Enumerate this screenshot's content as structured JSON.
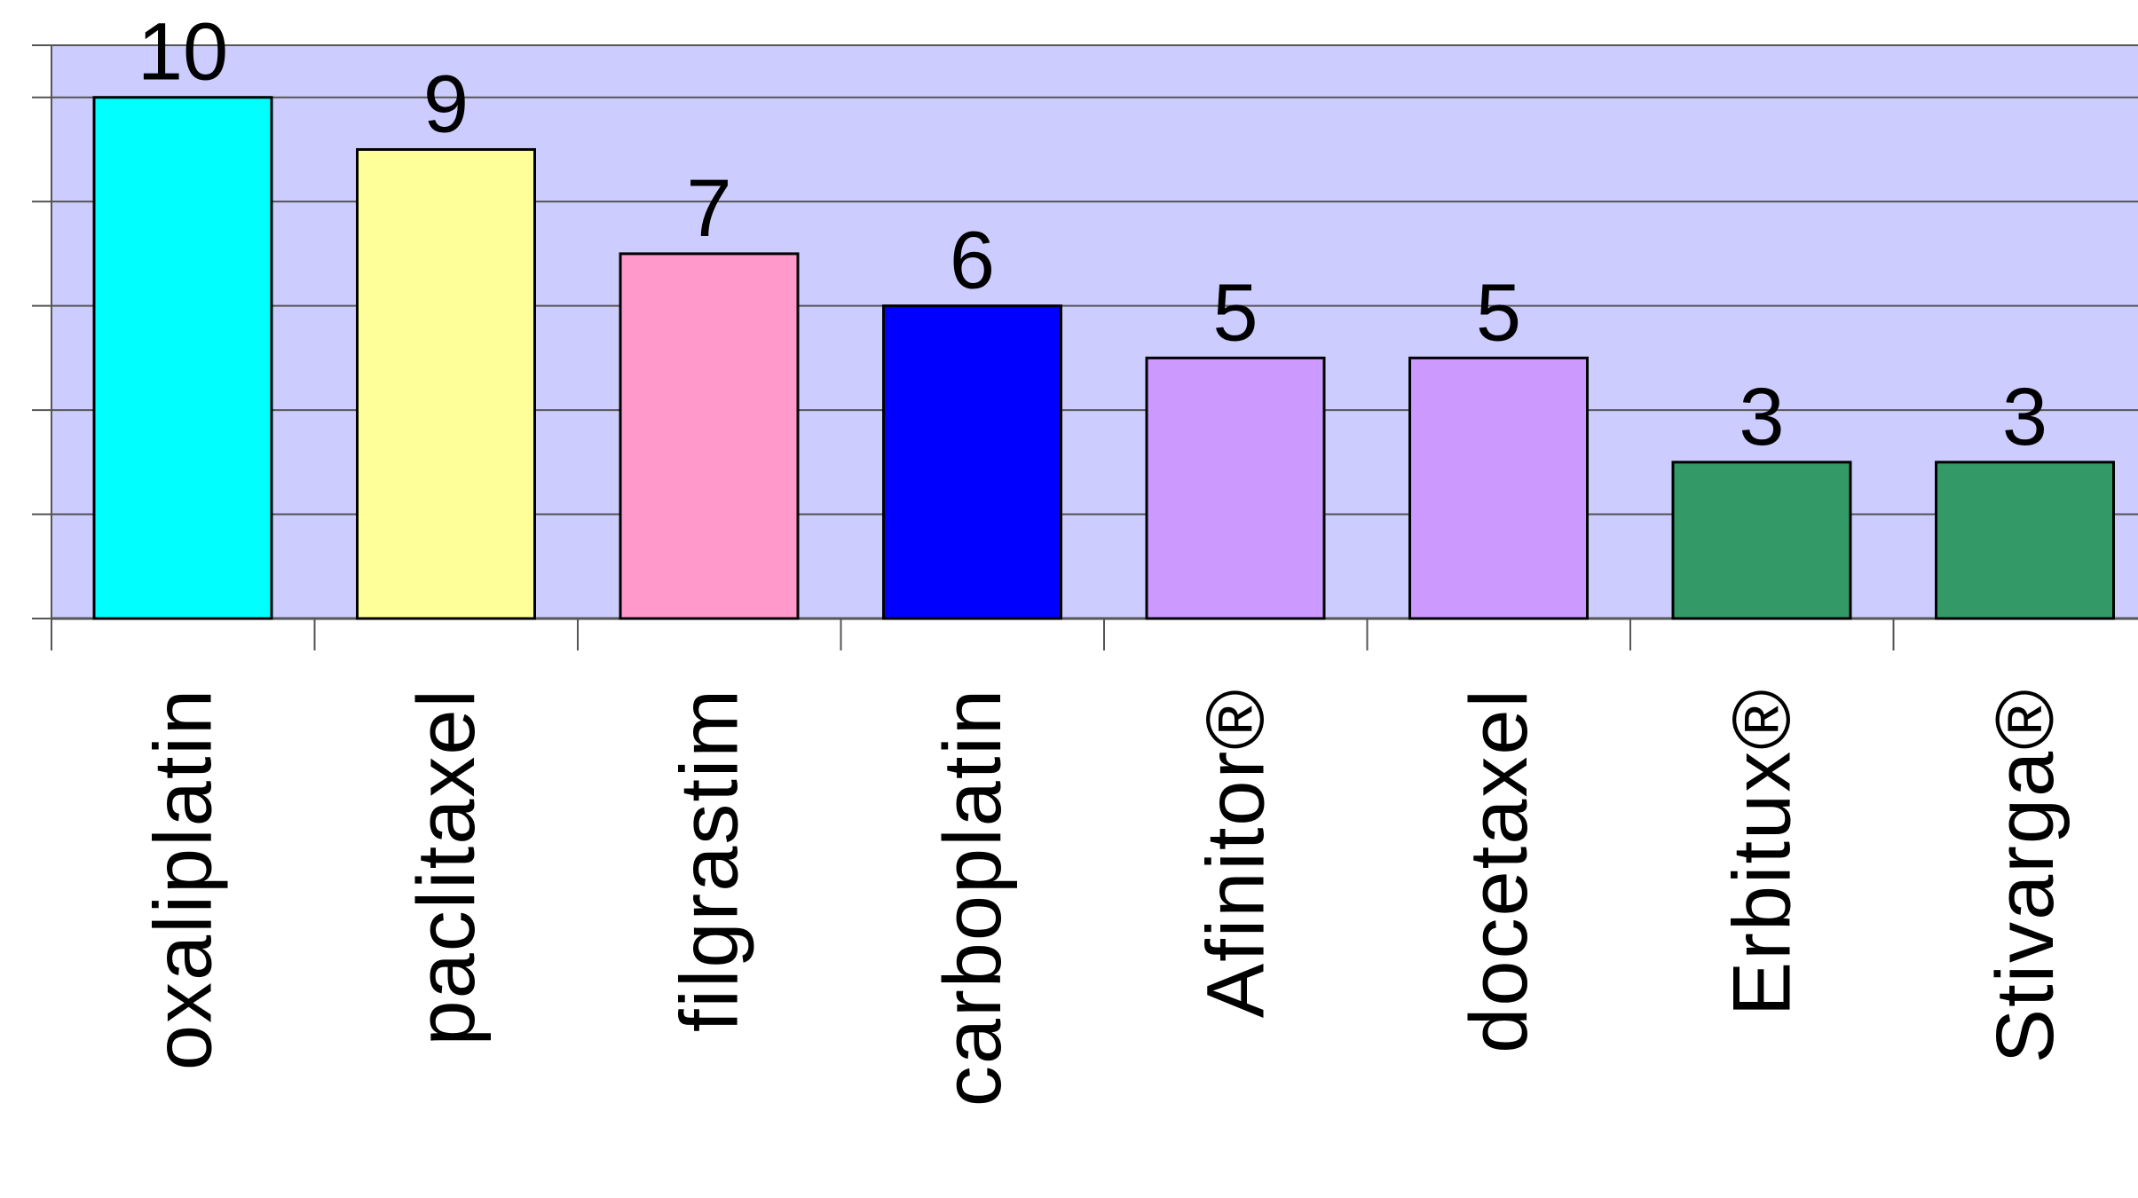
{
  "chart_data": {
    "type": "bar",
    "title": "",
    "xlabel": "",
    "ylabel": "",
    "ylim": [
      0,
      11
    ],
    "y_ticks": [
      0,
      2,
      4,
      6,
      8,
      10
    ],
    "grid": true,
    "legend": "none",
    "plot_background": "#ccccff",
    "gridline_color": "#555555",
    "categories": [
      "oxaliplatin",
      "paclitaxel",
      "filgrastim",
      "carboplatin",
      "Afinitor®",
      "docetaxel",
      "Erbitux®",
      "Stivarga®"
    ],
    "values": [
      10,
      9,
      7,
      6,
      5,
      5,
      3,
      3
    ],
    "value_labels": [
      "10",
      "9",
      "7",
      "6",
      "5",
      "5",
      "3",
      "3"
    ],
    "bar_colors": [
      "#00ffff",
      "#ffff99",
      "#ff99cc",
      "#0000ff",
      "#cc99ff",
      "#cc99ff",
      "#339966",
      "#339966"
    ]
  }
}
